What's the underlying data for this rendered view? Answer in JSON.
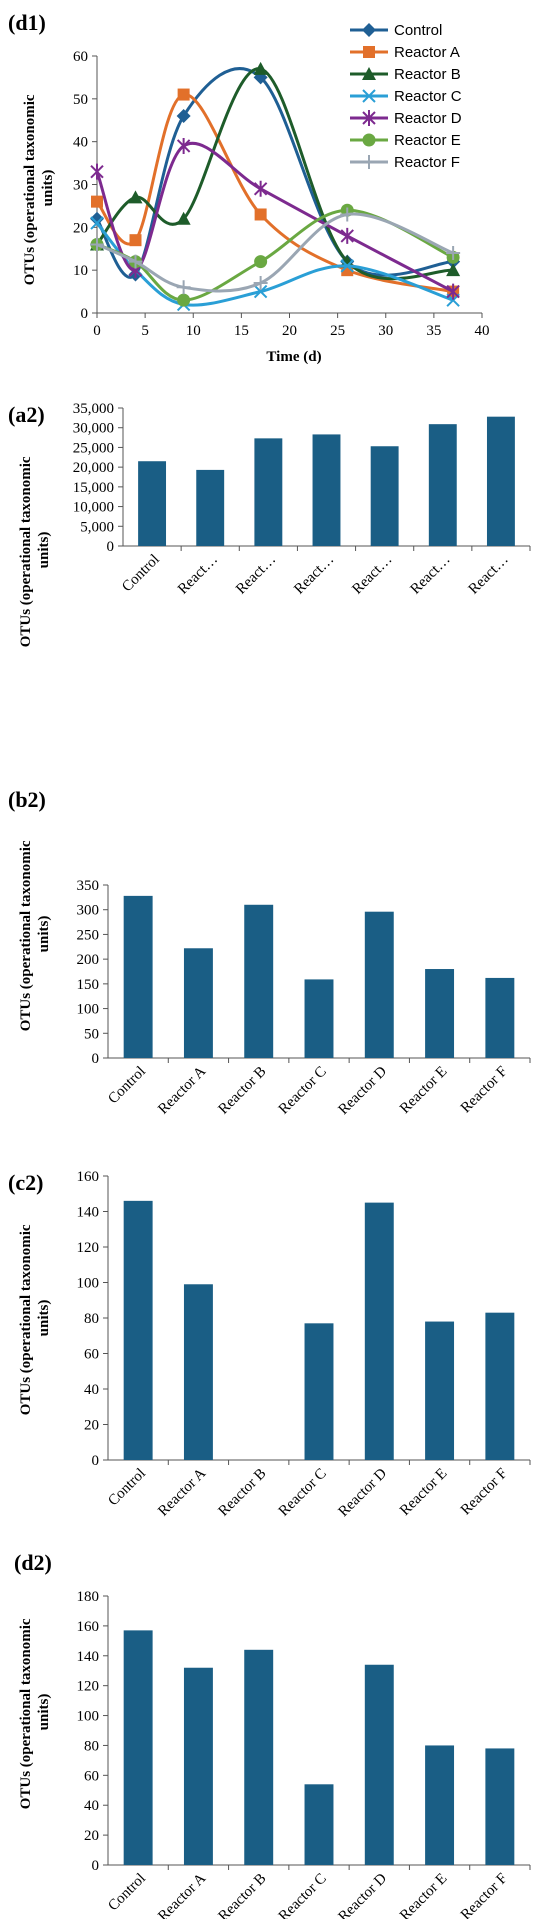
{
  "chart_data": [
    {
      "panel_label": "(d1)",
      "type": "line",
      "smooth": true,
      "x": [
        0,
        4,
        9,
        17,
        26,
        37
      ],
      "series": [
        {
          "name": "Control",
          "values": [
            22,
            9,
            46,
            55,
            12,
            12
          ],
          "color": "#1f5f94",
          "marker": "diamond"
        },
        {
          "name": "Reactor A",
          "values": [
            26,
            17,
            51,
            23,
            10,
            5
          ],
          "color": "#e2702a",
          "marker": "square"
        },
        {
          "name": "Reactor B",
          "values": [
            16,
            27,
            22,
            57,
            12,
            10
          ],
          "color": "#1e5c2a",
          "marker": "triangle"
        },
        {
          "name": "Reactor C",
          "values": [
            21,
            10,
            2,
            5,
            11,
            3
          ],
          "color": "#2a9fd6",
          "marker": "x"
        },
        {
          "name": "Reactor D",
          "values": [
            33,
            10,
            39,
            29,
            18,
            5
          ],
          "color": "#7d2a8f",
          "marker": "star"
        },
        {
          "name": "Reactor E",
          "values": [
            16,
            12,
            3,
            12,
            24,
            13
          ],
          "color": "#6aa842",
          "marker": "circle"
        },
        {
          "name": "Reactor F",
          "values": [
            16,
            12,
            6,
            7,
            23,
            14
          ],
          "color": "#9aa6b3",
          "marker": "plus"
        }
      ],
      "xlabel": "Time (d)",
      "ylabel": [
        "OTUs (operational taxonomic",
        "units)"
      ],
      "xlim": [
        0,
        40
      ],
      "ylim": [
        0,
        60
      ],
      "xticks": [
        "0",
        "5",
        "10",
        "15",
        "20",
        "25",
        "30",
        "35",
        "40"
      ],
      "yticks": [
        "0",
        "10",
        "20",
        "30",
        "40",
        "50",
        "60"
      ],
      "legend": "top-right",
      "grid": false
    },
    {
      "panel_label": "(a2)",
      "type": "bar",
      "categories": [
        "Control",
        "React…",
        "React…",
        "React…",
        "React…",
        "React…",
        "React…"
      ],
      "values": [
        21500,
        19300,
        27300,
        28300,
        25300,
        30900,
        32800
      ],
      "ylabel": [
        "OTUs (operational taxonomic",
        "units)"
      ],
      "ylim": [
        0,
        35000
      ],
      "yticks": [
        "0",
        "5,000",
        "10,000",
        "15,000",
        "20,000",
        "25,000",
        "30,000",
        "35,000"
      ],
      "color": "#1a5e85",
      "grid": false
    },
    {
      "panel_label": "(b2)",
      "type": "bar",
      "categories": [
        "Control",
        "Reactor A",
        "Reactor B",
        "Reactor C",
        "Reactor D",
        "Reactor E",
        "Reactor F"
      ],
      "values": [
        328,
        222,
        310,
        159,
        296,
        180,
        162
      ],
      "ylabel": [
        "OTUs (operational taxonomic",
        "units)"
      ],
      "ylim": [
        0,
        350
      ],
      "yticks": [
        "0",
        "50",
        "100",
        "150",
        "200",
        "250",
        "300",
        "350"
      ],
      "color": "#1a5e85",
      "grid": false
    },
    {
      "panel_label": "(c2)",
      "type": "bar",
      "categories": [
        "Control",
        "Reactor A",
        "Reactor B",
        "Reactor C",
        "Reactor D",
        "Reactor E",
        "Reactor F"
      ],
      "values": [
        146,
        99,
        0,
        77,
        145,
        78,
        83
      ],
      "ylabel": [
        "OTUs (operational taxonomic",
        "units)"
      ],
      "ylim": [
        0,
        160
      ],
      "yticks": [
        "0",
        "20",
        "40",
        "60",
        "80",
        "100",
        "120",
        "140",
        "160"
      ],
      "color": "#1a5e85",
      "grid": false
    },
    {
      "panel_label": "(d2)",
      "type": "bar",
      "categories": [
        "Control",
        "Reactor A",
        "Reactor B",
        "Reactor C",
        "Reactor D",
        "Reactor E",
        "Reactor F"
      ],
      "values": [
        157,
        132,
        144,
        54,
        134,
        80,
        78
      ],
      "ylabel": [
        "OTUs (operational taxonomic",
        "units)"
      ],
      "ylim": [
        0,
        180
      ],
      "yticks": [
        "0",
        "20",
        "40",
        "60",
        "80",
        "100",
        "120",
        "140",
        "160",
        "180"
      ],
      "color": "#1a5e85",
      "grid": false
    }
  ]
}
